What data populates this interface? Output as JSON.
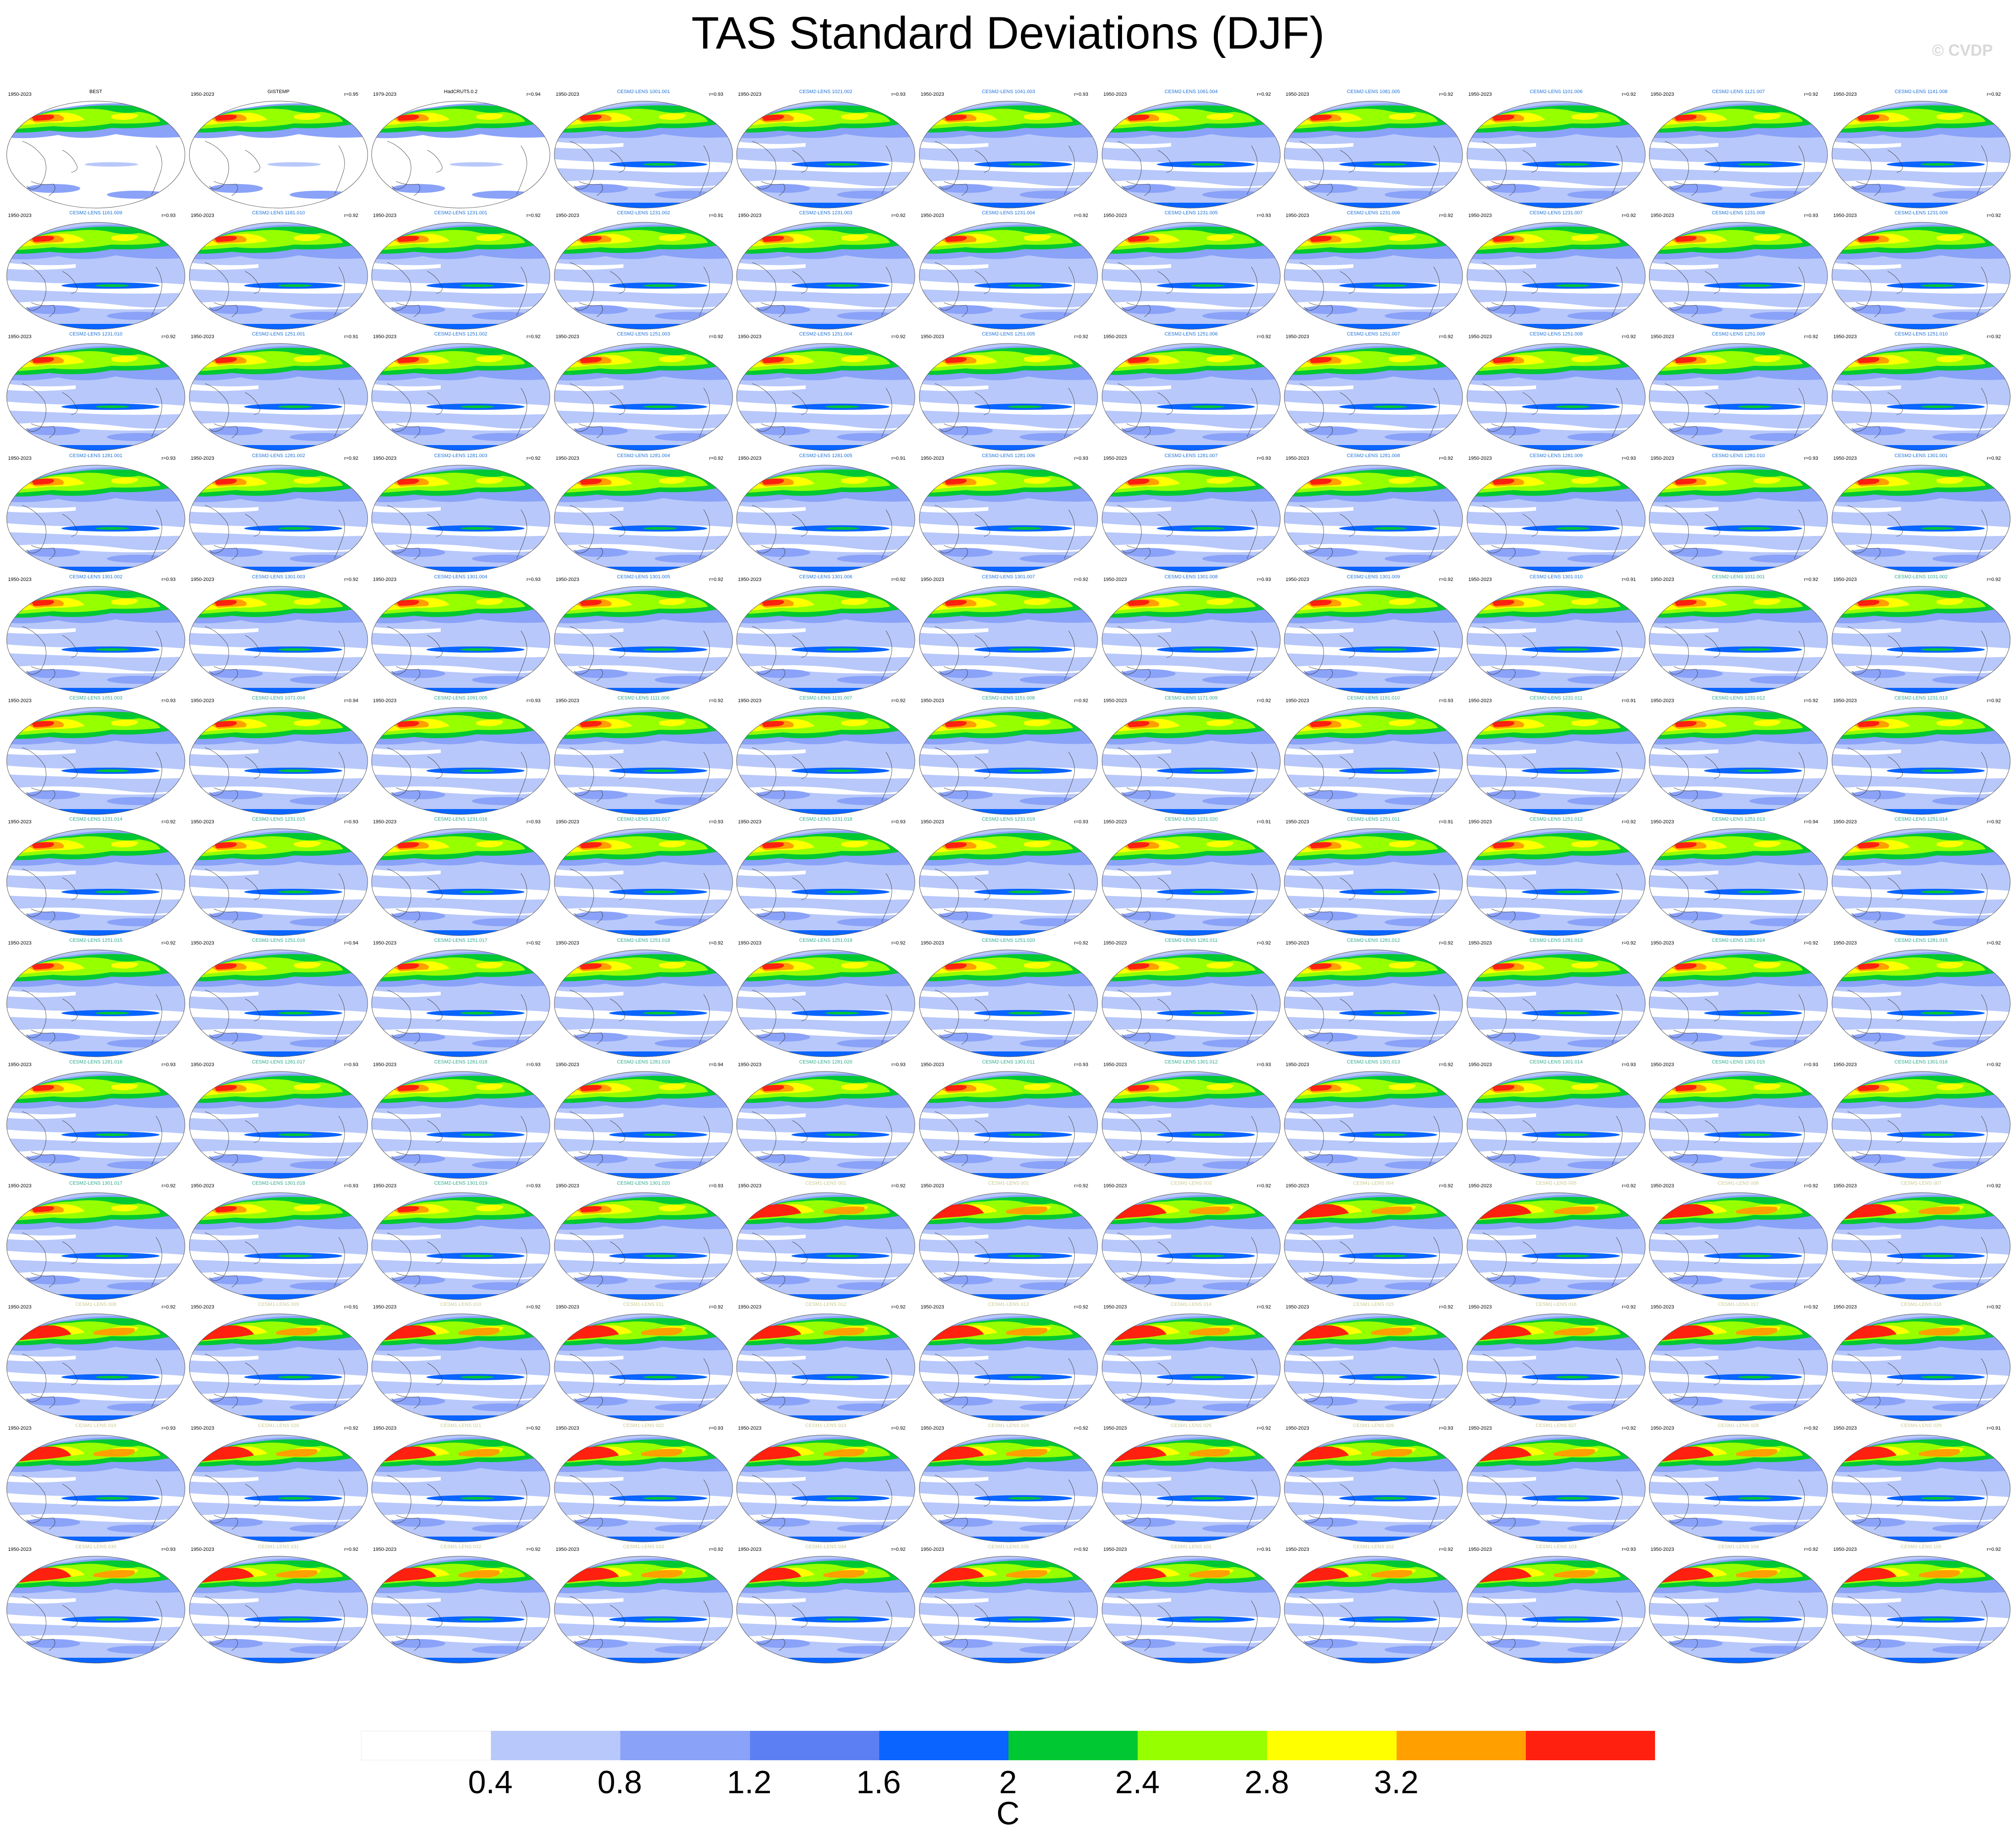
{
  "title": "TAS Standard Deviations (DJF)",
  "credit": "© CVDP",
  "colorbar": {
    "unit": "C",
    "ticks": [
      "0.4",
      "0.8",
      "1.2",
      "1.6",
      "2",
      "2.4",
      "2.8",
      "3.2"
    ],
    "colors": [
      "#ffffff",
      "#b8c8fa",
      "#8aa2f8",
      "#5c80f4",
      "#0a64ff",
      "#00c832",
      "#96ff00",
      "#ffff00",
      "#ffa000",
      "#ff2010"
    ]
  },
  "panels": [
    {
      "years": "1950-2023",
      "name": "BEST",
      "corr": "",
      "group": "obs"
    },
    {
      "years": "1950-2023",
      "name": "GISTEMP",
      "corr": "r=0.95",
      "group": "obs"
    },
    {
      "years": "1979-2023",
      "name": "HadCRUT5.0.2",
      "corr": "r=0.94",
      "group": "obs"
    },
    {
      "years": "1950-2023",
      "name": "CESM2-LENS 1001.001",
      "corr": "r=0.93",
      "group": "cesm2a"
    },
    {
      "years": "1950-2023",
      "name": "CESM2-LENS 1021.002",
      "corr": "r=0.93",
      "group": "cesm2a"
    },
    {
      "years": "1950-2023",
      "name": "CESM2-LENS 1041.003",
      "corr": "r=0.93",
      "group": "cesm2a"
    },
    {
      "years": "1950-2023",
      "name": "CESM2-LENS 1061.004",
      "corr": "r=0.92",
      "group": "cesm2a"
    },
    {
      "years": "1950-2023",
      "name": "CESM2-LENS 1081.005",
      "corr": "r=0.92",
      "group": "cesm2a"
    },
    {
      "years": "1950-2023",
      "name": "CESM2-LENS 1101.006",
      "corr": "r=0.92",
      "group": "cesm2a"
    },
    {
      "years": "1950-2023",
      "name": "CESM2-LENS 1121.007",
      "corr": "r=0.92",
      "group": "cesm2a"
    },
    {
      "years": "1950-2023",
      "name": "CESM2-LENS 1141.008",
      "corr": "r=0.92",
      "group": "cesm2a"
    },
    {
      "years": "1950-2023",
      "name": "CESM2-LENS 1161.009",
      "corr": "r=0.93",
      "group": "cesm2a"
    },
    {
      "years": "1950-2023",
      "name": "CESM2-LENS 1181.010",
      "corr": "r=0.92",
      "group": "cesm2a"
    },
    {
      "years": "1950-2023",
      "name": "CESM2-LENS 1231.001",
      "corr": "r=0.92",
      "group": "cesm2a"
    },
    {
      "years": "1950-2023",
      "name": "CESM2-LENS 1231.002",
      "corr": "r=0.91",
      "group": "cesm2a"
    },
    {
      "years": "1950-2023",
      "name": "CESM2-LENS 1231.003",
      "corr": "r=0.92",
      "group": "cesm2a"
    },
    {
      "years": "1950-2023",
      "name": "CESM2-LENS 1231.004",
      "corr": "r=0.92",
      "group": "cesm2a"
    },
    {
      "years": "1950-2023",
      "name": "CESM2-LENS 1231.005",
      "corr": "r=0.93",
      "group": "cesm2a"
    },
    {
      "years": "1950-2023",
      "name": "CESM2-LENS 1231.006",
      "corr": "r=0.92",
      "group": "cesm2a"
    },
    {
      "years": "1950-2023",
      "name": "CESM2-LENS 1231.007",
      "corr": "r=0.92",
      "group": "cesm2a"
    },
    {
      "years": "1950-2023",
      "name": "CESM2-LENS 1231.008",
      "corr": "r=0.93",
      "group": "cesm2a"
    },
    {
      "years": "1950-2023",
      "name": "CESM2-LENS 1231.009",
      "corr": "r=0.92",
      "group": "cesm2a"
    },
    {
      "years": "1950-2023",
      "name": "CESM2-LENS 1231.010",
      "corr": "r=0.92",
      "group": "cesm2a"
    },
    {
      "years": "1950-2023",
      "name": "CESM2-LENS 1251.001",
      "corr": "r=0.91",
      "group": "cesm2a"
    },
    {
      "years": "1950-2023",
      "name": "CESM2-LENS 1251.002",
      "corr": "r=0.92",
      "group": "cesm2a"
    },
    {
      "years": "1950-2023",
      "name": "CESM2-LENS 1251.003",
      "corr": "r=0.92",
      "group": "cesm2a"
    },
    {
      "years": "1950-2023",
      "name": "CESM2-LENS 1251.004",
      "corr": "r=0.92",
      "group": "cesm2a"
    },
    {
      "years": "1950-2023",
      "name": "CESM2-LENS 1251.005",
      "corr": "r=0.92",
      "group": "cesm2a"
    },
    {
      "years": "1950-2023",
      "name": "CESM2-LENS 1251.006",
      "corr": "r=0.92",
      "group": "cesm2a"
    },
    {
      "years": "1950-2023",
      "name": "CESM2-LENS 1251.007",
      "corr": "r=0.92",
      "group": "cesm2a"
    },
    {
      "years": "1950-2023",
      "name": "CESM2-LENS 1251.008",
      "corr": "r=0.92",
      "group": "cesm2a"
    },
    {
      "years": "1950-2023",
      "name": "CESM2-LENS 1251.009",
      "corr": "r=0.92",
      "group": "cesm2a"
    },
    {
      "years": "1950-2023",
      "name": "CESM2-LENS 1251.010",
      "corr": "r=0.92",
      "group": "cesm2a"
    },
    {
      "years": "1950-2023",
      "name": "CESM2-LENS 1281.001",
      "corr": "r=0.93",
      "group": "cesm2a"
    },
    {
      "years": "1950-2023",
      "name": "CESM2-LENS 1281.002",
      "corr": "r=0.92",
      "group": "cesm2a"
    },
    {
      "years": "1950-2023",
      "name": "CESM2-LENS 1281.003",
      "corr": "r=0.92",
      "group": "cesm2a"
    },
    {
      "years": "1950-2023",
      "name": "CESM2-LENS 1281.004",
      "corr": "r=0.92",
      "group": "cesm2a"
    },
    {
      "years": "1950-2023",
      "name": "CESM2-LENS 1281.005",
      "corr": "r=0.91",
      "group": "cesm2a"
    },
    {
      "years": "1950-2023",
      "name": "CESM2-LENS 1281.006",
      "corr": "r=0.93",
      "group": "cesm2a"
    },
    {
      "years": "1950-2023",
      "name": "CESM2-LENS 1281.007",
      "corr": "r=0.93",
      "group": "cesm2a"
    },
    {
      "years": "1950-2023",
      "name": "CESM2-LENS 1281.008",
      "corr": "r=0.92",
      "group": "cesm2a"
    },
    {
      "years": "1950-2023",
      "name": "CESM2-LENS 1281.009",
      "corr": "r=0.93",
      "group": "cesm2a"
    },
    {
      "years": "1950-2023",
      "name": "CESM2-LENS 1281.010",
      "corr": "r=0.93",
      "group": "cesm2a"
    },
    {
      "years": "1950-2023",
      "name": "CESM2-LENS 1301.001",
      "corr": "r=0.92",
      "group": "cesm2a"
    },
    {
      "years": "1950-2023",
      "name": "CESM2-LENS 1301.002",
      "corr": "r=0.93",
      "group": "cesm2a"
    },
    {
      "years": "1950-2023",
      "name": "CESM2-LENS 1301.003",
      "corr": "r=0.92",
      "group": "cesm2a"
    },
    {
      "years": "1950-2023",
      "name": "CESM2-LENS 1301.004",
      "corr": "r=0.93",
      "group": "cesm2a"
    },
    {
      "years": "1950-2023",
      "name": "CESM2-LENS 1301.005",
      "corr": "r=0.92",
      "group": "cesm2a"
    },
    {
      "years": "1950-2023",
      "name": "CESM2-LENS 1301.006",
      "corr": "r=0.92",
      "group": "cesm2a"
    },
    {
      "years": "1950-2023",
      "name": "CESM2-LENS 1301.007",
      "corr": "r=0.92",
      "group": "cesm2a"
    },
    {
      "years": "1950-2023",
      "name": "CESM2-LENS 1301.008",
      "corr": "r=0.93",
      "group": "cesm2a"
    },
    {
      "years": "1950-2023",
      "name": "CESM2-LENS 1301.009",
      "corr": "r=0.92",
      "group": "cesm2a"
    },
    {
      "years": "1950-2023",
      "name": "CESM2-LENS 1301.010",
      "corr": "r=0.91",
      "group": "cesm2a"
    },
    {
      "years": "1950-2023",
      "name": "CESM2-LENS 1011.001",
      "corr": "r=0.92",
      "group": "cesm2b"
    },
    {
      "years": "1950-2023",
      "name": "CESM2-LENS 1031.002",
      "corr": "r=0.92",
      "group": "cesm2b"
    },
    {
      "years": "1950-2023",
      "name": "CESM2-LENS 1051.003",
      "corr": "r=0.93",
      "group": "cesm2b"
    },
    {
      "years": "1950-2023",
      "name": "CESM2-LENS 1071.004",
      "corr": "r=0.94",
      "group": "cesm2b"
    },
    {
      "years": "1950-2023",
      "name": "CESM2-LENS 1091.005",
      "corr": "r=0.93",
      "group": "cesm2b"
    },
    {
      "years": "1950-2023",
      "name": "CESM2-LENS 1111.006",
      "corr": "r=0.92",
      "group": "cesm2b"
    },
    {
      "years": "1950-2023",
      "name": "CESM2-LENS 1131.007",
      "corr": "r=0.92",
      "group": "cesm2b"
    },
    {
      "years": "1950-2023",
      "name": "CESM2-LENS 1151.008",
      "corr": "r=0.92",
      "group": "cesm2b"
    },
    {
      "years": "1950-2023",
      "name": "CESM2-LENS 1171.009",
      "corr": "r=0.92",
      "group": "cesm2b"
    },
    {
      "years": "1950-2023",
      "name": "CESM2-LENS 1191.010",
      "corr": "r=0.93",
      "group": "cesm2b"
    },
    {
      "years": "1950-2023",
      "name": "CESM2-LENS 1231.011",
      "corr": "r=0.91",
      "group": "cesm2b"
    },
    {
      "years": "1950-2023",
      "name": "CESM2-LENS 1231.012",
      "corr": "r=0.92",
      "group": "cesm2b"
    },
    {
      "years": "1950-2023",
      "name": "CESM2-LENS 1231.013",
      "corr": "r=0.92",
      "group": "cesm2b"
    },
    {
      "years": "1950-2023",
      "name": "CESM2-LENS 1231.014",
      "corr": "r=0.92",
      "group": "cesm2b"
    },
    {
      "years": "1950-2023",
      "name": "CESM2-LENS 1231.015",
      "corr": "r=0.93",
      "group": "cesm2b"
    },
    {
      "years": "1950-2023",
      "name": "CESM2-LENS 1231.016",
      "corr": "r=0.93",
      "group": "cesm2b"
    },
    {
      "years": "1950-2023",
      "name": "CESM2-LENS 1231.017",
      "corr": "r=0.93",
      "group": "cesm2b"
    },
    {
      "years": "1950-2023",
      "name": "CESM2-LENS 1231.018",
      "corr": "r=0.93",
      "group": "cesm2b"
    },
    {
      "years": "1950-2023",
      "name": "CESM2-LENS 1231.019",
      "corr": "r=0.93",
      "group": "cesm2b"
    },
    {
      "years": "1950-2023",
      "name": "CESM2-LENS 1231.020",
      "corr": "r=0.91",
      "group": "cesm2b"
    },
    {
      "years": "1950-2023",
      "name": "CESM2-LENS 1251.011",
      "corr": "r=0.91",
      "group": "cesm2b"
    },
    {
      "years": "1950-2023",
      "name": "CESM2-LENS 1251.012",
      "corr": "r=0.92",
      "group": "cesm2b"
    },
    {
      "years": "1950-2023",
      "name": "CESM2-LENS 1251.013",
      "corr": "r=0.94",
      "group": "cesm2b"
    },
    {
      "years": "1950-2023",
      "name": "CESM2-LENS 1251.014",
      "corr": "r=0.92",
      "group": "cesm2b"
    },
    {
      "years": "1950-2023",
      "name": "CESM2-LENS 1251.015",
      "corr": "r=0.92",
      "group": "cesm2b"
    },
    {
      "years": "1950-2023",
      "name": "CESM2-LENS 1251.016",
      "corr": "r=0.94",
      "group": "cesm2b"
    },
    {
      "years": "1950-2023",
      "name": "CESM2-LENS 1251.017",
      "corr": "r=0.92",
      "group": "cesm2b"
    },
    {
      "years": "1950-2023",
      "name": "CESM2-LENS 1251.018",
      "corr": "r=0.92",
      "group": "cesm2b"
    },
    {
      "years": "1950-2023",
      "name": "CESM2-LENS 1251.019",
      "corr": "r=0.92",
      "group": "cesm2b"
    },
    {
      "years": "1950-2023",
      "name": "CESM2-LENS 1251.020",
      "corr": "r=0.92",
      "group": "cesm2b"
    },
    {
      "years": "1950-2023",
      "name": "CESM2-LENS 1281.011",
      "corr": "r=0.92",
      "group": "cesm2b"
    },
    {
      "years": "1950-2023",
      "name": "CESM2-LENS 1281.012",
      "corr": "r=0.92",
      "group": "cesm2b"
    },
    {
      "years": "1950-2023",
      "name": "CESM2-LENS 1281.013",
      "corr": "r=0.92",
      "group": "cesm2b"
    },
    {
      "years": "1950-2023",
      "name": "CESM2-LENS 1281.014",
      "corr": "r=0.92",
      "group": "cesm2b"
    },
    {
      "years": "1950-2023",
      "name": "CESM2-LENS 1281.015",
      "corr": "r=0.92",
      "group": "cesm2b"
    },
    {
      "years": "1950-2023",
      "name": "CESM2-LENS 1281.016",
      "corr": "r=0.93",
      "group": "cesm2b"
    },
    {
      "years": "1950-2023",
      "name": "CESM2-LENS 1281.017",
      "corr": "r=0.93",
      "group": "cesm2b"
    },
    {
      "years": "1950-2023",
      "name": "CESM2-LENS 1281.018",
      "corr": "r=0.93",
      "group": "cesm2b"
    },
    {
      "years": "1950-2023",
      "name": "CESM2-LENS 1281.019",
      "corr": "r=0.94",
      "group": "cesm2b"
    },
    {
      "years": "1950-2023",
      "name": "CESM2-LENS 1281.020",
      "corr": "r=0.93",
      "group": "cesm2b"
    },
    {
      "years": "1950-2023",
      "name": "CESM2-LENS 1301.011",
      "corr": "r=0.93",
      "group": "cesm2b"
    },
    {
      "years": "1950-2023",
      "name": "CESM2-LENS 1301.012",
      "corr": "r=0.93",
      "group": "cesm2b"
    },
    {
      "years": "1950-2023",
      "name": "CESM2-LENS 1301.013",
      "corr": "r=0.92",
      "group": "cesm2b"
    },
    {
      "years": "1950-2023",
      "name": "CESM2-LENS 1301.014",
      "corr": "r=0.93",
      "group": "cesm2b"
    },
    {
      "years": "1950-2023",
      "name": "CESM2-LENS 1301.015",
      "corr": "r=0.93",
      "group": "cesm2b"
    },
    {
      "years": "1950-2023",
      "name": "CESM2-LENS 1301.016",
      "corr": "r=0.92",
      "group": "cesm2b"
    },
    {
      "years": "1950-2023",
      "name": "CESM2-LENS 1301.017",
      "corr": "r=0.92",
      "group": "cesm2b"
    },
    {
      "years": "1950-2023",
      "name": "CESM2-LENS 1301.018",
      "corr": "r=0.93",
      "group": "cesm2b"
    },
    {
      "years": "1950-2023",
      "name": "CESM2-LENS 1301.019",
      "corr": "r=0.93",
      "group": "cesm2b"
    },
    {
      "years": "1950-2023",
      "name": "CESM2-LENS 1301.020",
      "corr": "r=0.93",
      "group": "cesm2b"
    },
    {
      "years": "1950-2023",
      "name": "CESM1-LENS 001",
      "corr": "r=0.92",
      "group": "cesm1"
    },
    {
      "years": "1950-2023",
      "name": "CESM1-LENS 002",
      "corr": "r=0.92",
      "group": "cesm1"
    },
    {
      "years": "1950-2023",
      "name": "CESM1-LENS 003",
      "corr": "r=0.92",
      "group": "cesm1"
    },
    {
      "years": "1950-2023",
      "name": "CESM1-LENS 004",
      "corr": "r=0.92",
      "group": "cesm1"
    },
    {
      "years": "1950-2023",
      "name": "CESM1-LENS 005",
      "corr": "r=0.92",
      "group": "cesm1"
    },
    {
      "years": "1950-2023",
      "name": "CESM1-LENS 006",
      "corr": "r=0.92",
      "group": "cesm1"
    },
    {
      "years": "1950-2023",
      "name": "CESM1-LENS 007",
      "corr": "r=0.92",
      "group": "cesm1"
    },
    {
      "years": "1950-2023",
      "name": "CESM1-LENS 008",
      "corr": "r=0.92",
      "group": "cesm1"
    },
    {
      "years": "1950-2023",
      "name": "CESM1-LENS 009",
      "corr": "r=0.91",
      "group": "cesm1"
    },
    {
      "years": "1950-2023",
      "name": "CESM1-LENS 010",
      "corr": "r=0.92",
      "group": "cesm1"
    },
    {
      "years": "1950-2023",
      "name": "CESM1-LENS 011",
      "corr": "r=0.92",
      "group": "cesm1"
    },
    {
      "years": "1950-2023",
      "name": "CESM1-LENS 012",
      "corr": "r=0.92",
      "group": "cesm1"
    },
    {
      "years": "1950-2023",
      "name": "CESM1-LENS 013",
      "corr": "r=0.92",
      "group": "cesm1"
    },
    {
      "years": "1950-2023",
      "name": "CESM1-LENS 014",
      "corr": "r=0.92",
      "group": "cesm1"
    },
    {
      "years": "1950-2023",
      "name": "CESM1-LENS 015",
      "corr": "r=0.92",
      "group": "cesm1"
    },
    {
      "years": "1950-2023",
      "name": "CESM1-LENS 016",
      "corr": "r=0.92",
      "group": "cesm1"
    },
    {
      "years": "1950-2023",
      "name": "CESM1-LENS 017",
      "corr": "r=0.92",
      "group": "cesm1"
    },
    {
      "years": "1950-2023",
      "name": "CESM1-LENS 018",
      "corr": "r=0.92",
      "group": "cesm1"
    },
    {
      "years": "1950-2023",
      "name": "CESM1-LENS 019",
      "corr": "r=0.93",
      "group": "cesm1"
    },
    {
      "years": "1950-2023",
      "name": "CESM1-LENS 020",
      "corr": "r=0.92",
      "group": "cesm1"
    },
    {
      "years": "1950-2023",
      "name": "CESM1-LENS 021",
      "corr": "r=0.92",
      "group": "cesm1"
    },
    {
      "years": "1950-2023",
      "name": "CESM1-LENS 022",
      "corr": "r=0.93",
      "group": "cesm1"
    },
    {
      "years": "1950-2023",
      "name": "CESM1-LENS 023",
      "corr": "r=0.92",
      "group": "cesm1"
    },
    {
      "years": "1950-2023",
      "name": "CESM1-LENS 024",
      "corr": "r=0.92",
      "group": "cesm1"
    },
    {
      "years": "1950-2023",
      "name": "CESM1-LENS 025",
      "corr": "r=0.92",
      "group": "cesm1"
    },
    {
      "years": "1950-2023",
      "name": "CESM1-LENS 026",
      "corr": "r=0.93",
      "group": "cesm1"
    },
    {
      "years": "1950-2023",
      "name": "CESM1-LENS 027",
      "corr": "r=0.92",
      "group": "cesm1"
    },
    {
      "years": "1950-2023",
      "name": "CESM1-LENS 028",
      "corr": "r=0.92",
      "group": "cesm1"
    },
    {
      "years": "1950-2023",
      "name": "CESM1-LENS 029",
      "corr": "r=0.91",
      "group": "cesm1"
    },
    {
      "years": "1950-2023",
      "name": "CESM1-LENS 030",
      "corr": "r=0.93",
      "group": "cesm1"
    },
    {
      "years": "1950-2023",
      "name": "CESM1-LENS 031",
      "corr": "r=0.92",
      "group": "cesm1"
    },
    {
      "years": "1950-2023",
      "name": "CESM1-LENS 032",
      "corr": "r=0.92",
      "group": "cesm1"
    },
    {
      "years": "1950-2023",
      "name": "CESM1-LENS 033",
      "corr": "r=0.92",
      "group": "cesm1"
    },
    {
      "years": "1950-2023",
      "name": "CESM1-LENS 034",
      "corr": "r=0.92",
      "group": "cesm1"
    },
    {
      "years": "1950-2023",
      "name": "CESM1-LENS 035",
      "corr": "r=0.92",
      "group": "cesm1"
    },
    {
      "years": "1950-2023",
      "name": "CESM1-LENS 101",
      "corr": "r=0.91",
      "group": "cesm1"
    },
    {
      "years": "1950-2023",
      "name": "CESM1-LENS 102",
      "corr": "r=0.92",
      "group": "cesm1"
    },
    {
      "years": "1950-2023",
      "name": "CESM1-LENS 103",
      "corr": "r=0.93",
      "group": "cesm1"
    },
    {
      "years": "1950-2023",
      "name": "CESM1-LENS 104",
      "corr": "r=0.92",
      "group": "cesm1"
    },
    {
      "years": "1950-2023",
      "name": "CESM1-LENS 105",
      "corr": "r=0.92",
      "group": "cesm1"
    }
  ],
  "label_colors": {
    "obs": "#000000",
    "cesm2a": "#1a6fd8",
    "cesm2b": "#2aa88a",
    "cesm1": "#c8c890"
  }
}
